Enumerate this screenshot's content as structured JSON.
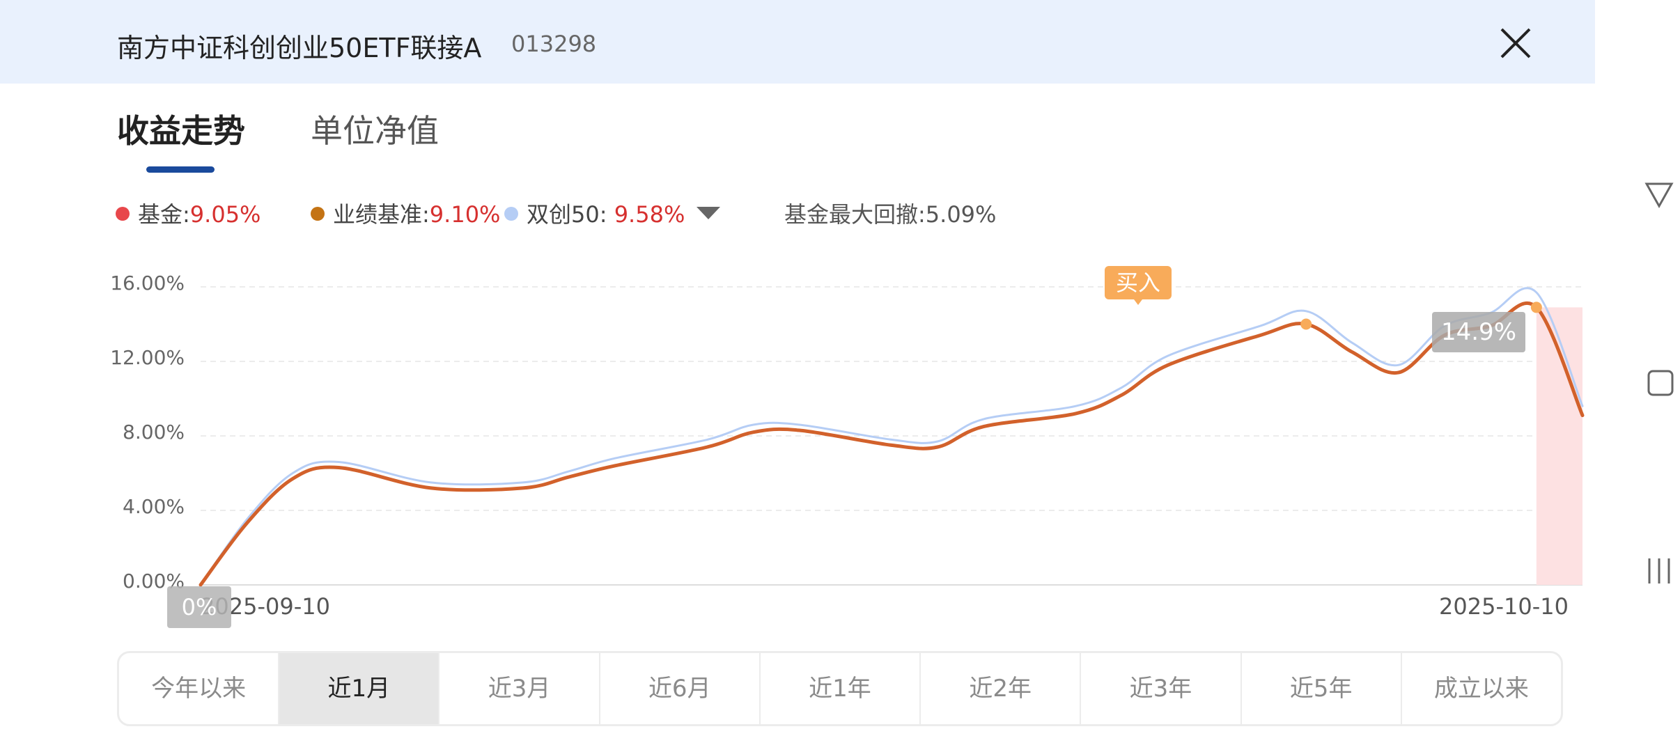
{
  "header": {
    "fund_name": "南方中证科创创业50ETF联接A",
    "fund_code": "013298"
  },
  "tabs": [
    {
      "label": "收益走势",
      "active": true
    },
    {
      "label": "单位净值",
      "active": false
    }
  ],
  "legend": {
    "fund": {
      "label": "基金:",
      "value": "9.05%",
      "color": "#e8474b"
    },
    "benchmark": {
      "label": "业绩基准:",
      "value": "9.10%",
      "color": "#c47314"
    },
    "index": {
      "label": "双创50: ",
      "value": "9.58%",
      "color": "#b5cdf5"
    },
    "max_drawdown": "基金最大回撤:5.09%"
  },
  "chart": {
    "y_ticks": [
      "16.00%",
      "12.00%",
      "8.00%",
      "4.00%",
      "0.00%"
    ],
    "date_start": "2025-09-10",
    "date_end": "2025-10-10",
    "start_label": "0%",
    "peak_label": "14.9%",
    "buy_label": "买入"
  },
  "chart_data": {
    "type": "line",
    "ylim": [
      0,
      16
    ],
    "y_ticks": [
      0,
      4,
      8,
      12,
      16
    ],
    "x_range": [
      "2025-09-10",
      "2025-10-10"
    ],
    "series": [
      {
        "name": "业绩基准",
        "color": "#d2612b",
        "x": [
          "2025-09-10",
          "2025-09-11",
          "2025-09-12",
          "2025-09-13",
          "2025-09-15",
          "2025-09-17",
          "2025-09-18",
          "2025-09-19",
          "2025-09-21",
          "2025-09-22",
          "2025-09-23",
          "2025-09-25",
          "2025-09-26",
          "2025-09-27",
          "2025-09-29",
          "2025-09-30",
          "2025-10-01",
          "2025-10-03",
          "2025-10-04",
          "2025-10-05",
          "2025-10-06",
          "2025-10-07",
          "2025-10-08",
          "2025-10-09",
          "2025-10-10"
        ],
        "y": [
          0,
          3.3,
          5.7,
          6.3,
          5.2,
          5.2,
          5.8,
          6.4,
          7.4,
          8.2,
          8.3,
          7.5,
          7.4,
          8.5,
          9.2,
          10.2,
          11.8,
          13.4,
          14.0,
          12.5,
          11.4,
          13.4,
          13.9,
          14.9,
          9.1
        ]
      },
      {
        "name": "双创50",
        "color": "#b5cdf5",
        "x": [
          "2025-09-10",
          "2025-09-11",
          "2025-09-12",
          "2025-09-13",
          "2025-09-15",
          "2025-09-17",
          "2025-09-18",
          "2025-09-19",
          "2025-09-21",
          "2025-09-22",
          "2025-09-23",
          "2025-09-25",
          "2025-09-26",
          "2025-09-27",
          "2025-09-29",
          "2025-09-30",
          "2025-10-01",
          "2025-10-03",
          "2025-10-04",
          "2025-10-05",
          "2025-10-06",
          "2025-10-07",
          "2025-10-08",
          "2025-10-09",
          "2025-10-10"
        ],
        "y": [
          0,
          3.5,
          6.0,
          6.6,
          5.5,
          5.5,
          6.1,
          6.8,
          7.8,
          8.6,
          8.6,
          7.8,
          7.7,
          8.9,
          9.6,
          10.6,
          12.3,
          13.9,
          14.7,
          13.0,
          11.8,
          13.9,
          14.6,
          15.7,
          9.6
        ]
      }
    ],
    "markers": {
      "buy": {
        "x": "2025-10-04",
        "y": 14.0
      },
      "peak": {
        "x": "2025-10-09",
        "y": 14.9
      }
    },
    "drawdown_region": {
      "from": "2025-10-09",
      "to": "2025-10-10"
    }
  },
  "periods": [
    {
      "label": "今年以来",
      "active": false
    },
    {
      "label": "近1月",
      "active": true
    },
    {
      "label": "近3月",
      "active": false
    },
    {
      "label": "近6月",
      "active": false
    },
    {
      "label": "近1年",
      "active": false
    },
    {
      "label": "近2年",
      "active": false
    },
    {
      "label": "近3年",
      "active": false
    },
    {
      "label": "近5年",
      "active": false
    },
    {
      "label": "成立以来",
      "active": false
    }
  ],
  "nav_icons": [
    "back-triangle-icon",
    "home-square-icon",
    "recent-apps-icon"
  ]
}
